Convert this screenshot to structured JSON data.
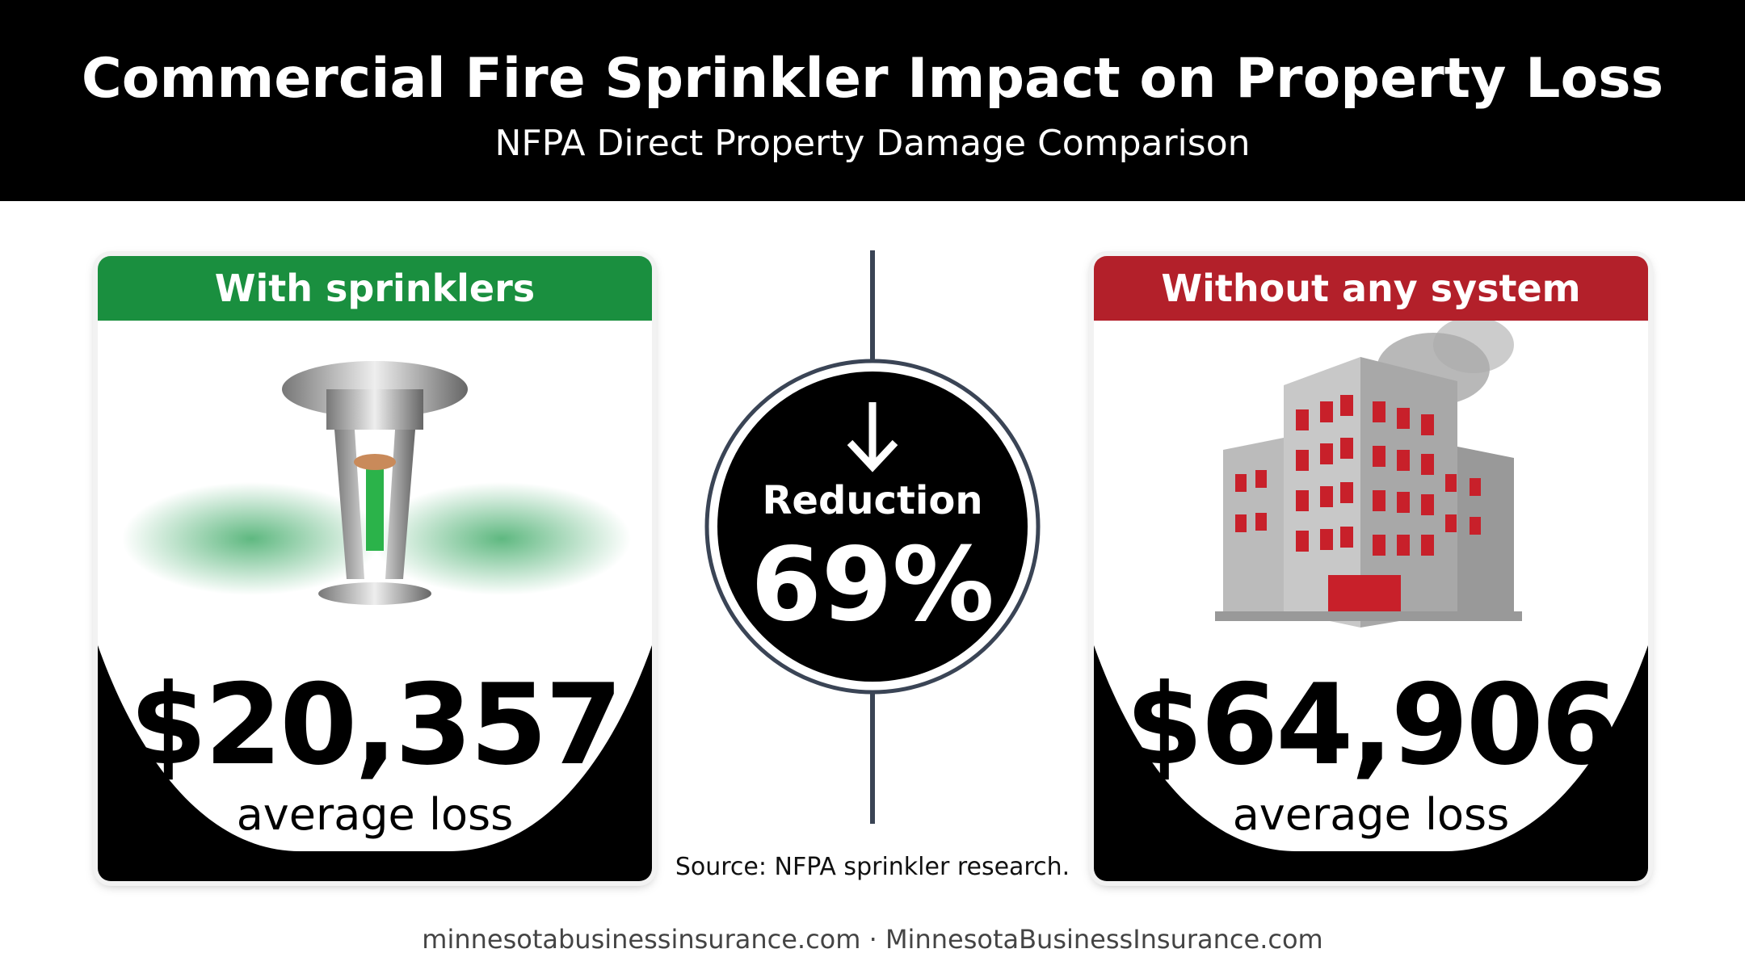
{
  "header": {
    "title": "Commercial Fire Sprinkler Impact on Property Loss",
    "subtitle": "NFPA Direct Property Damage Comparison"
  },
  "cards": [
    {
      "label": "With sprinklers",
      "value": "$20,357",
      "caption": "average loss"
    },
    {
      "label": "Without any system",
      "value": "$64,906",
      "caption": "average loss"
    }
  ],
  "comparison": {
    "label": "Reduction",
    "value": "69%"
  },
  "source": "Source: NFPA sprinkler research.",
  "footer": "minnesotabusinessinsurance.com · MinnesotaBusinessInsurance.com"
}
